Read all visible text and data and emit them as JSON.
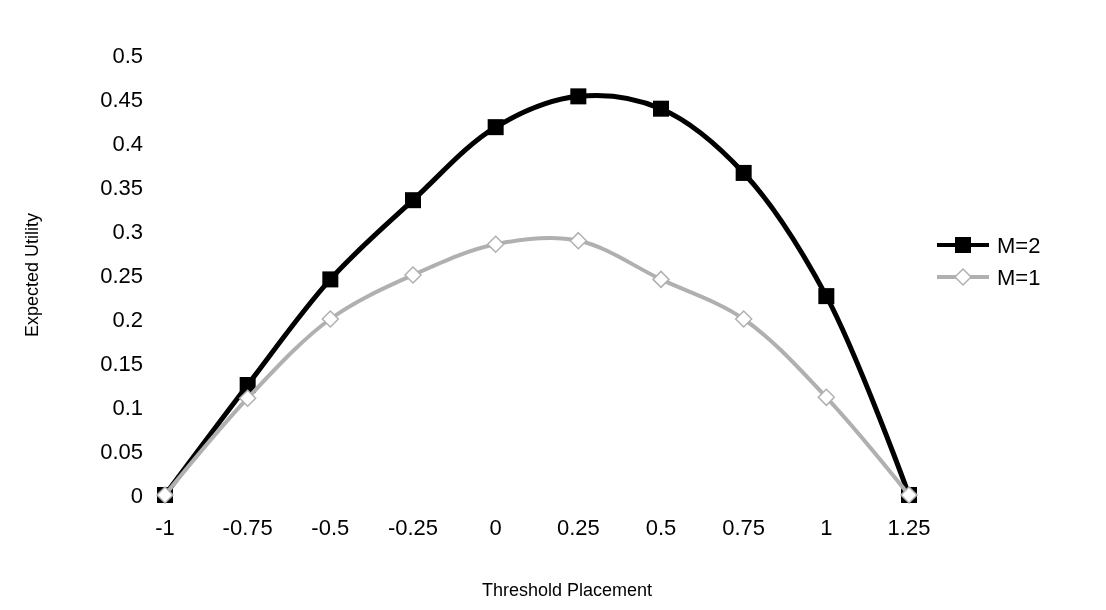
{
  "chart_data": {
    "type": "line",
    "xlabel": "Threshold Placement",
    "ylabel": "Expected Utility",
    "x": [
      -1,
      -0.75,
      -0.5,
      -0.25,
      0,
      0.25,
      0.5,
      0.75,
      1,
      1.25
    ],
    "series": [
      {
        "name": "M=2",
        "color": "#000000",
        "marker": "square",
        "values": [
          0,
          0.125,
          0.245,
          0.335,
          0.418,
          0.453,
          0.439,
          0.366,
          0.226,
          0
        ]
      },
      {
        "name": "M=1",
        "color": "#b0b0b0",
        "marker": "diamond",
        "values": [
          0,
          0.11,
          0.2,
          0.25,
          0.285,
          0.289,
          0.245,
          0.2,
          0.111,
          0
        ]
      }
    ],
    "xlim": [
      -1,
      1.25
    ],
    "xticks": [
      -1,
      -0.75,
      -0.5,
      -0.25,
      0,
      0.25,
      0.5,
      0.75,
      1,
      1.25
    ],
    "ylim": [
      0,
      0.5
    ],
    "yticks": [
      0,
      0.05,
      0.1,
      0.15,
      0.2,
      0.25,
      0.3,
      0.35,
      0.4,
      0.45,
      0.5
    ],
    "legend": "right",
    "grid": false
  }
}
